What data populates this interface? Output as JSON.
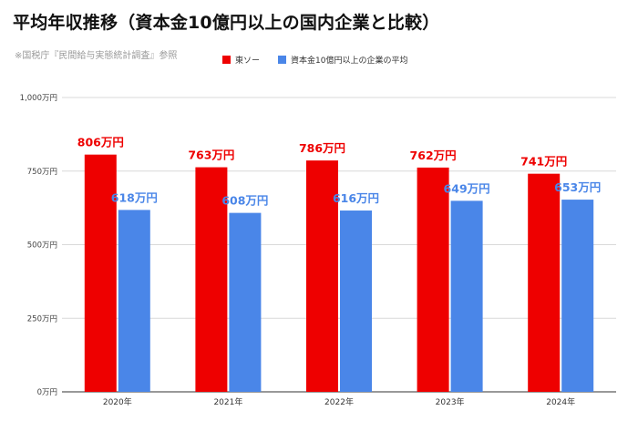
{
  "header": {
    "title": "平均年収推移（資本金10億円以上の国内企業と比較）",
    "source": "※国税庁『民間給与実態統計調査』参照"
  },
  "chart_data": {
    "type": "bar",
    "categories": [
      "2020年",
      "2021年",
      "2022年",
      "2023年",
      "2024年"
    ],
    "series": [
      {
        "name": "東ソー",
        "color": "#ee0000",
        "label_color": "#ee0000",
        "values": [
          806,
          763,
          786,
          762,
          741
        ],
        "data_labels": [
          "806万円",
          "763万円",
          "786万円",
          "762万円",
          "741万円"
        ]
      },
      {
        "name": "資本金10億円以上の企業の平均",
        "color": "#4a86e8",
        "label_color": "#4a86e8",
        "values": [
          618,
          608,
          616,
          649,
          653
        ],
        "data_labels": [
          "618万円",
          "608万円",
          "616万円",
          "649万円",
          "653万円"
        ]
      }
    ],
    "ylim": [
      0,
      1000
    ],
    "yticks": [
      0,
      250,
      500,
      750,
      1000
    ],
    "ytick_labels": [
      "0万円",
      "250万円",
      "500万円",
      "750万円",
      "1,000万円"
    ],
    "legend_position": "top-center",
    "grid": true
  }
}
